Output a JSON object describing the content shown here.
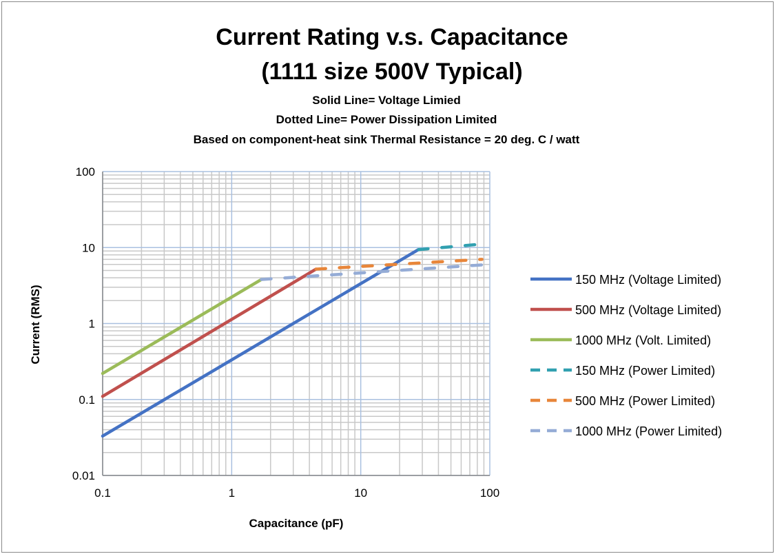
{
  "chart_data": {
    "type": "line",
    "title": [
      "Current Rating v.s. Capacitance",
      "(1111 size 500V  Typical)"
    ],
    "subtitle": [
      "Solid Line= Voltage Limied",
      "Dotted Line= Power Dissipation Limited",
      "Based on component-heat sink Thermal Resistance = 20 deg. C / watt"
    ],
    "xlabel": "Capacitance (pF)",
    "ylabel": "Current (RMS)",
    "x_scale": "log",
    "y_scale": "log",
    "xlim": [
      0.1,
      100
    ],
    "ylim": [
      0.01,
      100
    ],
    "x_ticks": [
      "0.1",
      "1",
      "10",
      "100"
    ],
    "y_ticks": [
      "0.01",
      "0.1",
      "1",
      "10",
      "100"
    ],
    "grid": true,
    "legend_position": "right",
    "series": [
      {
        "name": "150 MHz (Voltage Limited)",
        "color": "#4472c4",
        "style": "solid",
        "x": [
          0.1,
          28
        ],
        "y": [
          0.033,
          9.4
        ]
      },
      {
        "name": "500 MHz (Voltage Limited)",
        "color": "#c0504d",
        "style": "solid",
        "x": [
          0.1,
          4.5
        ],
        "y": [
          0.11,
          5.2
        ]
      },
      {
        "name": "1000 MHz (Volt. Limited)",
        "color": "#9bbb59",
        "style": "solid",
        "x": [
          0.1,
          1.7
        ],
        "y": [
          0.22,
          3.8
        ]
      },
      {
        "name": "150 MHz (Power Limited)",
        "color": "#31a0b0",
        "style": "dashed",
        "x": [
          28,
          87
        ],
        "y": [
          9.4,
          11.1
        ]
      },
      {
        "name": "500 MHz (Power Limited)",
        "color": "#e8863a",
        "style": "dashed",
        "x": [
          4.5,
          87
        ],
        "y": [
          5.2,
          7.0
        ]
      },
      {
        "name": "1000 MHz (Power Limited)",
        "color": "#95acd6",
        "style": "dashed",
        "x": [
          1.7,
          100
        ],
        "y": [
          3.8,
          6.0
        ]
      }
    ]
  }
}
